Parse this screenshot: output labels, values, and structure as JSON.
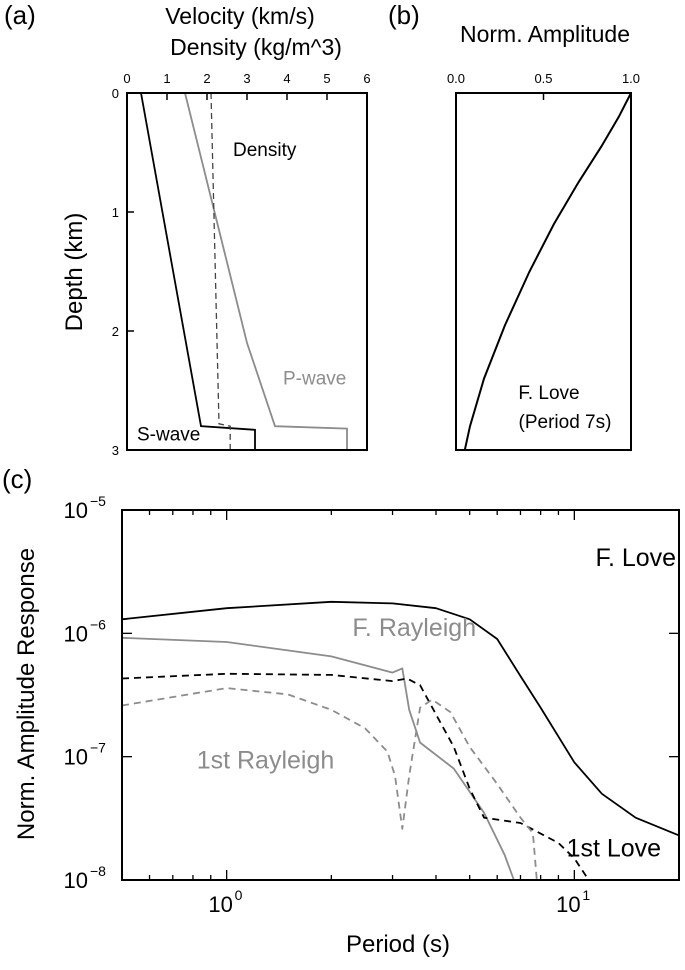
{
  "chart_data": [
    {
      "panel_label": "(a)",
      "type": "line",
      "title_line1": "Velocity (km/s)",
      "title_line2": "Density (kg/m^3)",
      "ylabel": "Depth (km)",
      "xlim": [
        0,
        6
      ],
      "ylim": [
        0,
        3
      ],
      "y_reversed": true,
      "x_ticks": [
        "0",
        "1",
        "2",
        "3",
        "4",
        "5",
        "6"
      ],
      "y_ticks": [
        "0",
        "1",
        "2",
        "3"
      ],
      "series": [
        {
          "name": "S-wave",
          "color": "#000000",
          "dash": "solid",
          "points": [
            [
              0.35,
              0
            ],
            [
              1.85,
              2.8
            ],
            [
              3.2,
              2.83
            ],
            [
              3.2,
              3.0
            ]
          ]
        },
        {
          "name": "P-wave",
          "color": "#8c8c8c",
          "dash": "solid",
          "points": [
            [
              1.45,
              0
            ],
            [
              3.0,
              2.1
            ],
            [
              3.7,
              2.8
            ],
            [
              5.5,
              2.82
            ],
            [
              5.5,
              3.0
            ]
          ]
        },
        {
          "name": "Density",
          "color": "#444444",
          "dash": "dashed",
          "points": [
            [
              2.1,
              0
            ],
            [
              2.3,
              2.78
            ],
            [
              2.58,
              2.8
            ],
            [
              2.58,
              3.0
            ]
          ]
        }
      ]
    },
    {
      "panel_label": "(b)",
      "type": "line",
      "title": "Norm. Amplitude",
      "xlim": [
        0,
        1
      ],
      "ylim": [
        0,
        3
      ],
      "y_reversed": true,
      "x_ticks": [
        "0.0",
        "0.5",
        "1.0"
      ],
      "annotation_line1": "F. Love",
      "annotation_line2": "(Period 7s)",
      "series": [
        {
          "name": "F. Love",
          "color": "#000000",
          "dash": "solid",
          "points": [
            [
              1.0,
              0
            ],
            [
              0.93,
              0.2
            ],
            [
              0.83,
              0.45
            ],
            [
              0.7,
              0.75
            ],
            [
              0.56,
              1.1
            ],
            [
              0.42,
              1.5
            ],
            [
              0.28,
              1.95
            ],
            [
              0.16,
              2.4
            ],
            [
              0.08,
              2.8
            ],
            [
              0.05,
              3.0
            ]
          ]
        }
      ]
    },
    {
      "panel_label": "(c)",
      "type": "line",
      "xlabel": "Period (s)",
      "ylabel": "Norm. Amplitude Response",
      "x_scale": "log",
      "y_scale": "log",
      "xlim": [
        0.5,
        20
      ],
      "ylim": [
        1e-08,
        1e-05
      ],
      "x_ticks": [
        {
          "value": 1,
          "mantissa": "10",
          "exponent": "0"
        },
        {
          "value": 10,
          "mantissa": "10",
          "exponent": "1"
        }
      ],
      "y_ticks": [
        {
          "value": 1e-05,
          "mantissa": "10",
          "exponent": "−5"
        },
        {
          "value": 1e-06,
          "mantissa": "10",
          "exponent": "−6"
        },
        {
          "value": 1e-07,
          "mantissa": "10",
          "exponent": "−7"
        },
        {
          "value": 1e-08,
          "mantissa": "10",
          "exponent": "−8"
        }
      ],
      "series": [
        {
          "name": "F. Love",
          "color": "#000000",
          "dash": "solid",
          "points": [
            [
              0.5,
              1.3e-06
            ],
            [
              1.0,
              1.6e-06
            ],
            [
              2.0,
              1.8e-06
            ],
            [
              3.0,
              1.75e-06
            ],
            [
              4.0,
              1.6e-06
            ],
            [
              5.0,
              1.3e-06
            ],
            [
              6.0,
              9e-07
            ],
            [
              7.0,
              4.5e-07
            ],
            [
              8.0,
              2.5e-07
            ],
            [
              10.0,
              9e-08
            ],
            [
              12.0,
              5e-08
            ],
            [
              15.0,
              3.2e-08
            ],
            [
              20.0,
              2.3e-08
            ]
          ]
        },
        {
          "name": "F. Rayleigh",
          "color": "#8c8c8c",
          "dash": "solid",
          "points": [
            [
              0.5,
              9.2e-07
            ],
            [
              1.0,
              8.5e-07
            ],
            [
              2.0,
              6.5e-07
            ],
            [
              3.0,
              4.8e-07
            ],
            [
              3.2,
              5.2e-07
            ],
            [
              3.35,
              2.4e-07
            ],
            [
              3.6,
              1.3e-07
            ],
            [
              4.5,
              8e-08
            ],
            [
              5.5,
              3.5e-08
            ],
            [
              6.3,
              1.6e-08
            ],
            [
              6.7,
              1e-08
            ]
          ]
        },
        {
          "name": "1st Love",
          "color": "#000000",
          "dash": "dashed",
          "points": [
            [
              0.5,
              4.3e-07
            ],
            [
              1.0,
              4.7e-07
            ],
            [
              2.0,
              4.6e-07
            ],
            [
              3.0,
              4.1e-07
            ],
            [
              3.3,
              4.3e-07
            ],
            [
              3.6,
              3.8e-07
            ],
            [
              4.0,
              2.2e-07
            ],
            [
              4.5,
              1.2e-07
            ],
            [
              5.0,
              5.5e-08
            ],
            [
              5.5,
              3.2e-08
            ],
            [
              7.0,
              2.9e-08
            ],
            [
              9.0,
              2e-08
            ],
            [
              10.0,
              1.5e-08
            ],
            [
              11.0,
              1e-08
            ]
          ]
        },
        {
          "name": "1st Rayleigh",
          "color": "#8c8c8c",
          "dash": "dashed",
          "points": [
            [
              0.5,
              2.6e-07
            ],
            [
              1.0,
              3.6e-07
            ],
            [
              1.5,
              3.2e-07
            ],
            [
              2.0,
              2.4e-07
            ],
            [
              2.5,
              1.7e-07
            ],
            [
              2.9,
              1.1e-07
            ],
            [
              3.05,
              7e-08
            ],
            [
              3.2,
              2.6e-08
            ],
            [
              3.35,
              7e-08
            ],
            [
              3.6,
              2.5e-07
            ],
            [
              3.9,
              2.9e-07
            ],
            [
              4.4,
              2.3e-07
            ],
            [
              5.0,
              1.2e-07
            ],
            [
              6.0,
              6e-08
            ],
            [
              7.0,
              3.2e-08
            ],
            [
              7.6,
              2.4e-08
            ],
            [
              7.8,
              1e-08
            ]
          ]
        }
      ],
      "labels": [
        {
          "series": "F. Love",
          "text": "F. Love",
          "color": "#000000",
          "at": [
            11.5,
            3.5e-06
          ]
        },
        {
          "series": "F. Rayleigh",
          "text": "F. Rayleigh",
          "color": "#8c8c8c",
          "at": [
            2.3,
            9.5e-07
          ]
        },
        {
          "series": "1st Rayleigh",
          "text": "1st Rayleigh",
          "color": "#8c8c8c",
          "at": [
            0.82,
            8e-08
          ]
        },
        {
          "series": "1st Love",
          "text": "1st Love",
          "color": "#000000",
          "at": [
            9.5,
            1.55e-08
          ]
        }
      ]
    }
  ],
  "panel_a_labels": [
    {
      "text": "Density",
      "color": "#000000",
      "at": [
        2.65,
        0.53
      ]
    },
    {
      "text": "P-wave",
      "color": "#8c8c8c",
      "at": [
        3.9,
        2.45
      ]
    },
    {
      "text": "S-wave",
      "color": "#000000",
      "at": [
        0.25,
        2.92
      ]
    }
  ]
}
